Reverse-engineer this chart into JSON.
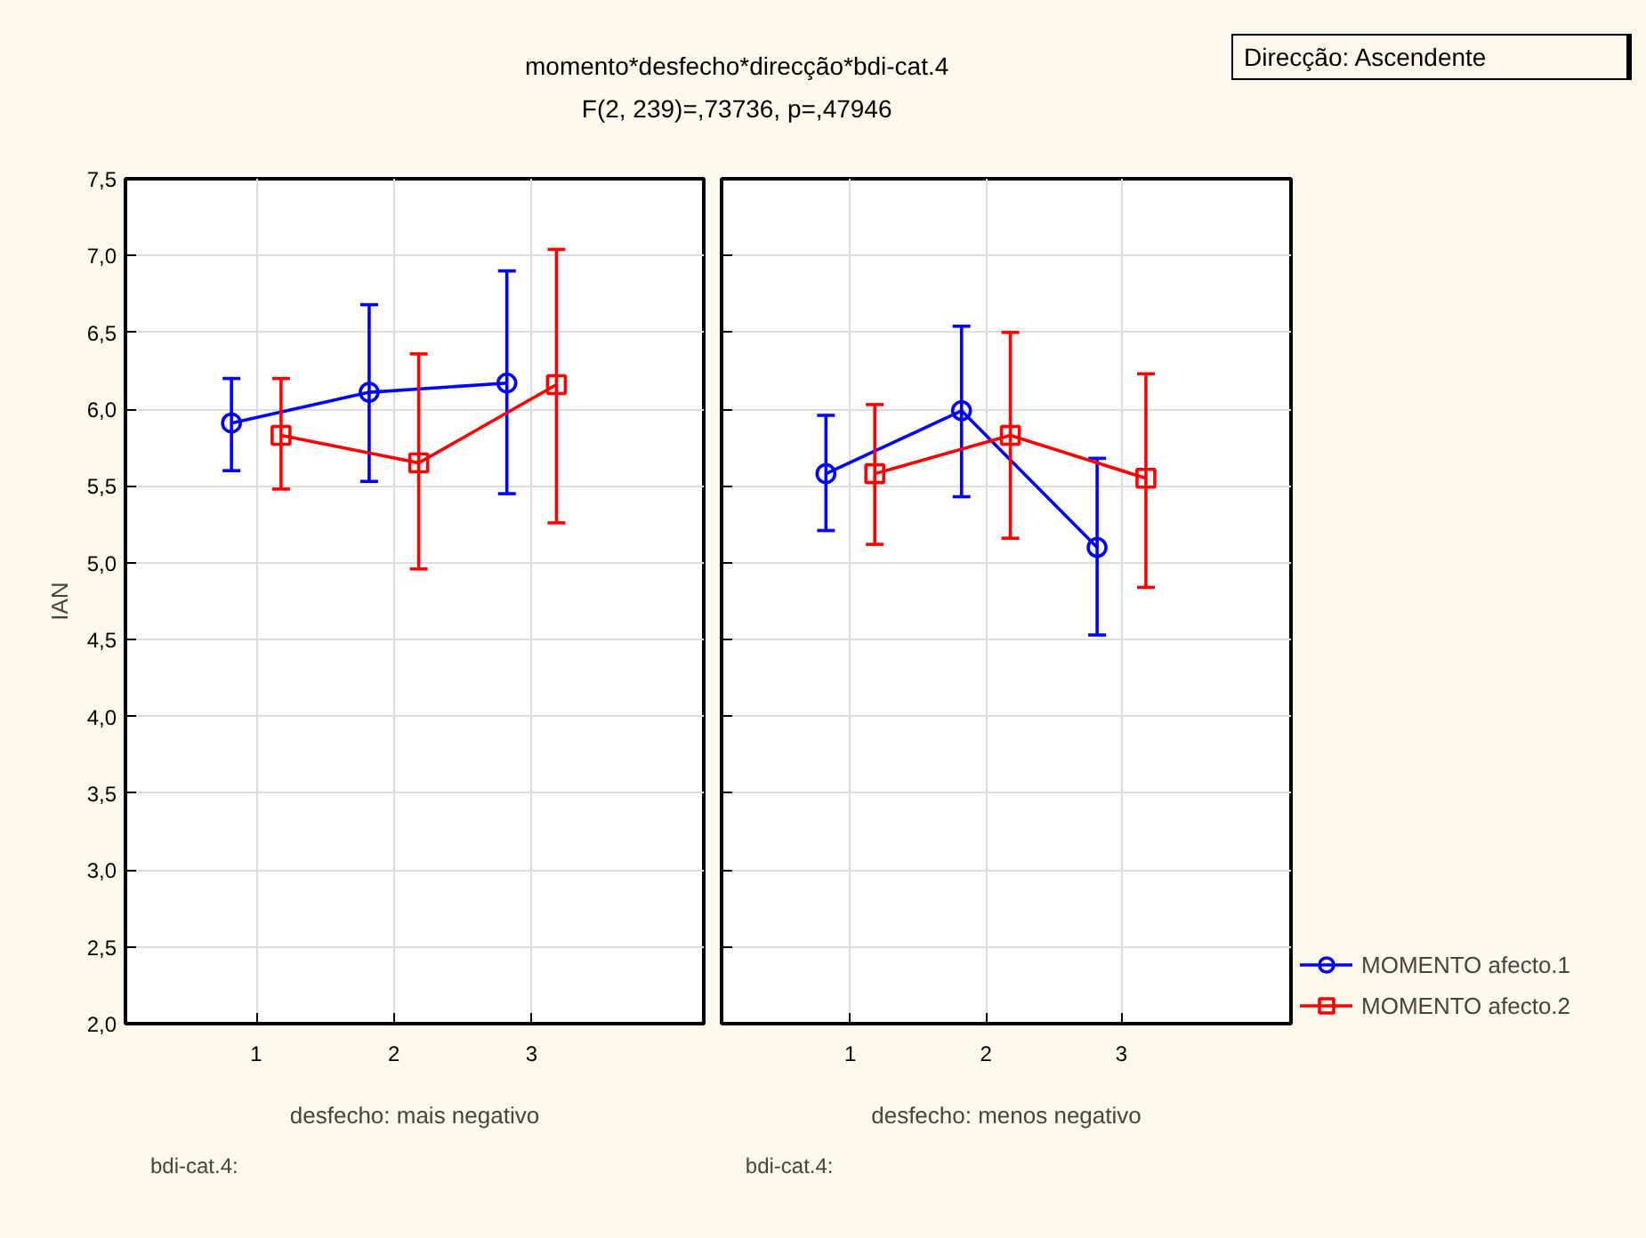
{
  "chart_data": [
    {
      "type": "line",
      "title": "momento*desfecho*direcção*bdi-cat.4",
      "subtitle": "F(2, 239)=,73736, p=,47946",
      "xlabel": "desfecho: mais negativo",
      "ylabel": "IAN",
      "categories": [
        "1",
        "2",
        "3"
      ],
      "ylim": [
        2.0,
        7.5
      ],
      "yticks": [
        {
          "value": 2.0,
          "label": "2,0"
        },
        {
          "value": 2.5,
          "label": "2,5"
        },
        {
          "value": 3.0,
          "label": "3,0"
        },
        {
          "value": 3.5,
          "label": "3,5"
        },
        {
          "value": 4.0,
          "label": "4,0"
        },
        {
          "value": 4.5,
          "label": "4,5"
        },
        {
          "value": 5.0,
          "label": "5,0"
        },
        {
          "value": 5.5,
          "label": "5,5"
        },
        {
          "value": 6.0,
          "label": "6,0"
        },
        {
          "value": 6.5,
          "label": "6,5"
        },
        {
          "value": 7.0,
          "label": "7,0"
        },
        {
          "value": 7.5,
          "label": "7,5"
        }
      ],
      "grid": true,
      "legend": "bottom right",
      "annotations": [
        "bdi-cat.4:",
        "Direcção: Ascendente"
      ],
      "series": [
        {
          "name": "MOMENTO afecto.1",
          "color": "#0000ff",
          "marker": "circle",
          "values": [
            5.91,
            6.11,
            6.17
          ],
          "errors": [
            [
              5.6,
              6.2
            ],
            [
              5.53,
              6.68
            ],
            [
              5.45,
              6.9
            ]
          ]
        },
        {
          "name": "MOMENTO afecto.2",
          "color": "#ff0000",
          "marker": "square",
          "values": [
            5.83,
            5.65,
            6.16
          ],
          "errors": [
            [
              5.48,
              6.2
            ],
            [
              4.96,
              6.36
            ],
            [
              5.26,
              7.04
            ]
          ]
        }
      ]
    },
    {
      "type": "line",
      "xlabel": "desfecho: menos negativo",
      "categories": [
        "1",
        "2",
        "3"
      ],
      "ylim": [
        2.0,
        7.5
      ],
      "yticks": [
        2.0,
        2.5,
        3.0,
        3.5,
        4.0,
        4.5,
        5.0,
        5.5,
        6.0,
        6.5,
        7.0,
        7.5
      ],
      "tick_labels": "x",
      "grid": true,
      "legend": "bottom right",
      "annotations": [
        "bdi-cat.4:"
      ],
      "series": [
        {
          "name": "MOMENTO afecto.1",
          "color": "#0000ff",
          "marker": "circle",
          "values": [
            5.58,
            5.99,
            5.1
          ],
          "errors": [
            [
              5.21,
              5.96
            ],
            [
              5.43,
              6.54
            ],
            [
              4.53,
              5.68
            ]
          ]
        },
        {
          "name": "MOMENTO afecto.2",
          "color": "#ff0000",
          "marker": "square",
          "values": [
            5.58,
            5.83,
            5.55
          ],
          "errors": [
            [
              5.12,
              6.03
            ],
            [
              5.16,
              6.5
            ],
            [
              4.84,
              6.23
            ]
          ]
        }
      ]
    }
  ]
}
